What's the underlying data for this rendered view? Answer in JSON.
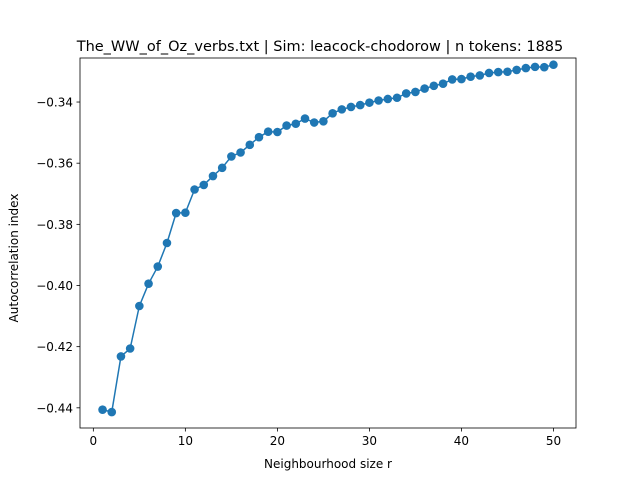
{
  "chart_data": {
    "type": "line",
    "title": "The_WW_of_Oz_verbs.txt | Sim: leacock-chodorow | n tokens: 1885",
    "xlabel": "Neighbourhood size r",
    "ylabel": "Autocorrelation index",
    "xlim": [
      -1.45,
      52.45
    ],
    "ylim": [
      -0.4466,
      -0.3256
    ],
    "xticks": [
      0,
      10,
      20,
      30,
      40,
      50
    ],
    "xtick_labels": [
      "0",
      "10",
      "20",
      "30",
      "40",
      "50"
    ],
    "yticks": [
      -0.44,
      -0.42,
      -0.4,
      -0.38,
      -0.36,
      -0.34
    ],
    "ytick_labels": [
      "−0.44",
      "−0.42",
      "−0.40",
      "−0.38",
      "−0.36",
      "−0.34"
    ],
    "grid": false,
    "marker": "circle",
    "series": [
      {
        "color": "#1f77b4",
        "x": [
          1,
          2,
          3,
          4,
          5,
          6,
          7,
          8,
          9,
          10,
          11,
          12,
          13,
          14,
          15,
          16,
          17,
          18,
          19,
          20,
          21,
          22,
          23,
          24,
          25,
          26,
          27,
          28,
          29,
          30,
          31,
          32,
          33,
          34,
          35,
          36,
          37,
          38,
          39,
          40,
          41,
          42,
          43,
          44,
          45,
          46,
          47,
          48,
          49,
          50
        ],
        "y": [
          -0.4406,
          -0.4414,
          -0.4232,
          -0.4206,
          -0.4067,
          -0.3994,
          -0.3938,
          -0.3861,
          -0.3763,
          -0.3762,
          -0.3686,
          -0.3671,
          -0.3642,
          -0.3615,
          -0.3578,
          -0.3565,
          -0.354,
          -0.3515,
          -0.3497,
          -0.3498,
          -0.3477,
          -0.3471,
          -0.3454,
          -0.3467,
          -0.3463,
          -0.3437,
          -0.3424,
          -0.3416,
          -0.341,
          -0.3402,
          -0.3395,
          -0.339,
          -0.3386,
          -0.3372,
          -0.3367,
          -0.3356,
          -0.3347,
          -0.334,
          -0.3326,
          -0.3325,
          -0.3317,
          -0.3313,
          -0.3305,
          -0.3302,
          -0.3301,
          -0.3295,
          -0.3289,
          -0.3285,
          -0.3286,
          -0.3278
        ]
      }
    ]
  }
}
